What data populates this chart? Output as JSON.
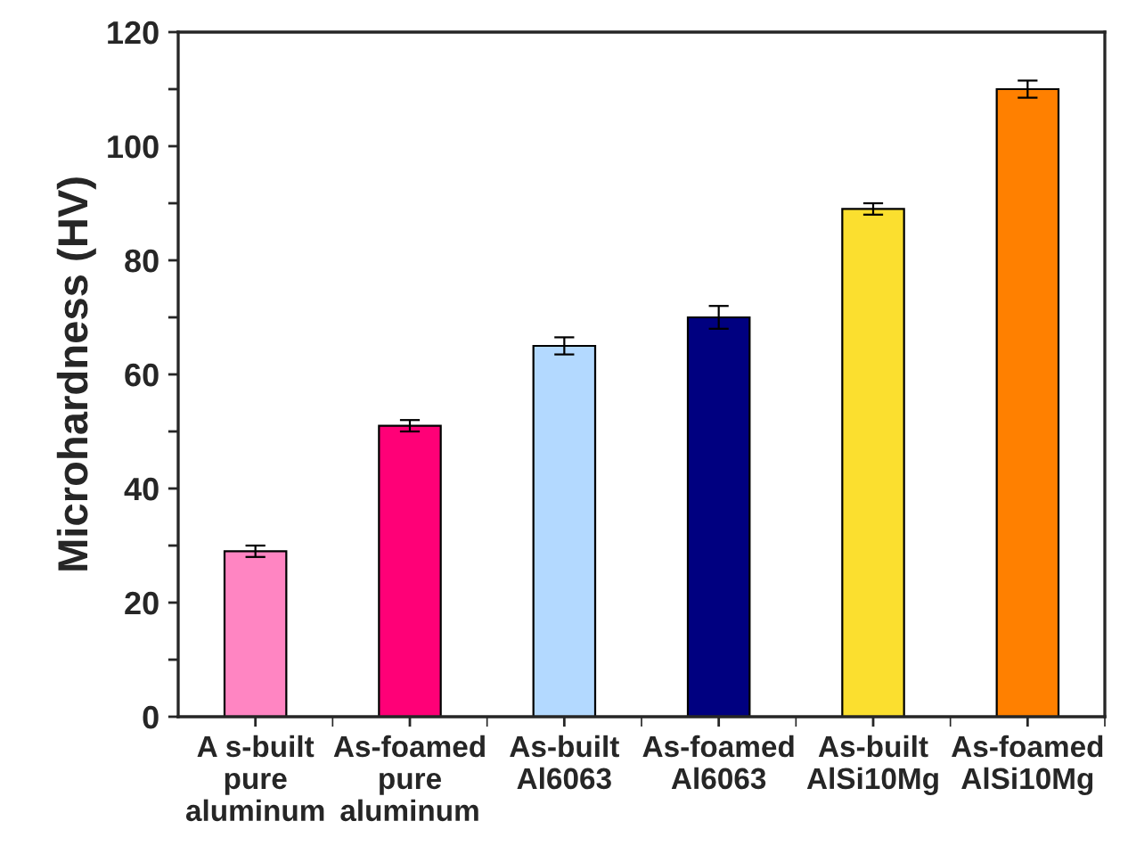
{
  "chart_data": {
    "type": "bar",
    "ylabel": "Microhardness (HV)",
    "categories": [
      "A s-built\npure\naluminum",
      "As-foamed\npure\naluminum",
      "As-built\nAl6063",
      "As-foamed\nAl6063",
      "As-built\nAlSi10Mg",
      "As-foamed\nAlSi10Mg"
    ],
    "values": [
      29,
      51,
      65,
      70,
      89,
      110
    ],
    "errors": [
      1,
      1,
      1.5,
      2,
      1,
      1.5
    ],
    "colors": [
      "#ff85c2",
      "#ff0077",
      "#b3d9ff",
      "#000080",
      "#fbdf2f",
      "#ff8000"
    ],
    "ylim": [
      0,
      120
    ],
    "yticks": [
      0,
      {
        "value": 10,
        "label": null
      },
      20,
      {
        "value": 30,
        "label": null
      },
      40,
      {
        "value": 50,
        "label": null
      },
      60,
      {
        "value": 70,
        "label": null
      },
      80,
      {
        "value": 90,
        "label": null
      },
      100,
      {
        "value": 110,
        "label": null
      },
      120
    ],
    "grid": false,
    "legend": false
  }
}
